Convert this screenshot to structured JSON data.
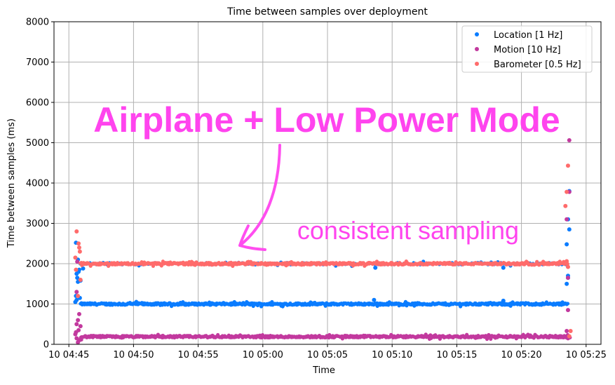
{
  "chart_data": {
    "type": "scatter",
    "title": "Time between samples over deployment",
    "xlabel": "Time",
    "ylabel": "Time between samples (ms)",
    "x_units": "minutes after 04:45",
    "xlim": [
      -1.15,
      41.15
    ],
    "ylim": [
      0,
      8000
    ],
    "yticks": [
      0,
      1000,
      2000,
      3000,
      4000,
      5000,
      6000,
      7000,
      8000
    ],
    "xticks": [
      0,
      5,
      10,
      15,
      20,
      25,
      30,
      35,
      40
    ],
    "xtick_labels": [
      "10 04:45",
      "10 04:50",
      "10 04:55",
      "10 05:00",
      "10 05:05",
      "10 05:10",
      "10 05:15",
      "10 05:20",
      "10 05:25"
    ],
    "grid": true,
    "legend_position": "top-right",
    "series": [
      {
        "name": "Location [1 Hz]",
        "color": "#0a7cff",
        "steady": {
          "start": 0.9,
          "end": 38.6,
          "value": 1000,
          "jitter": 25,
          "secondary_value": 2000
        },
        "outliers": [
          [
            0.55,
            2520
          ],
          [
            0.7,
            2100
          ],
          [
            0.6,
            1750
          ],
          [
            0.65,
            1650
          ],
          [
            0.8,
            1850
          ],
          [
            0.75,
            1800
          ],
          [
            0.9,
            1580
          ],
          [
            0.7,
            1550
          ],
          [
            0.55,
            1200
          ],
          [
            0.6,
            1100
          ],
          [
            0.85,
            1150
          ],
          [
            1.1,
            1880
          ],
          [
            0.5,
            1050
          ],
          [
            23.7,
            1900
          ],
          [
            23.6,
            1100
          ],
          [
            33.6,
            1900
          ],
          [
            33.6,
            1080
          ],
          [
            38.7,
            3800
          ],
          [
            38.6,
            3100
          ],
          [
            38.7,
            2850
          ],
          [
            38.5,
            2480
          ],
          [
            38.5,
            1500
          ],
          [
            38.6,
            1700
          ],
          [
            38.6,
            1650
          ]
        ]
      },
      {
        "name": "Motion [10 Hz]",
        "color": "#c2399e",
        "steady": {
          "start": 0.9,
          "end": 38.8,
          "value": 190,
          "jitter": 25
        },
        "outliers": [
          [
            0.6,
            1300
          ],
          [
            0.8,
            750
          ],
          [
            0.7,
            600
          ],
          [
            0.6,
            500
          ],
          [
            0.9,
            450
          ],
          [
            0.75,
            350
          ],
          [
            0.55,
            300
          ],
          [
            0.5,
            250
          ],
          [
            0.6,
            150
          ],
          [
            0.8,
            100
          ],
          [
            0.7,
            50
          ],
          [
            0.95,
            120
          ],
          [
            0.65,
            2050
          ],
          [
            38.7,
            5060
          ],
          [
            38.7,
            3780
          ],
          [
            38.5,
            3100
          ],
          [
            38.6,
            1650
          ],
          [
            38.6,
            850
          ],
          [
            38.5,
            330
          ],
          [
            38.6,
            150
          ]
        ]
      },
      {
        "name": "Barometer [0.5 Hz]",
        "color": "#ff6b6b",
        "steady": {
          "start": 0.9,
          "end": 38.6,
          "value": 2000,
          "jitter": 25
        },
        "outliers": [
          [
            0.6,
            2800
          ],
          [
            0.75,
            2500
          ],
          [
            0.8,
            2400
          ],
          [
            0.85,
            2300
          ],
          [
            0.5,
            2150
          ],
          [
            0.55,
            1850
          ],
          [
            0.9,
            1600
          ],
          [
            0.7,
            1200
          ],
          [
            38.6,
            4430
          ],
          [
            38.5,
            3780
          ],
          [
            38.4,
            3430
          ],
          [
            38.5,
            2060
          ],
          [
            38.6,
            1920
          ],
          [
            38.8,
            330
          ],
          [
            38.7,
            200
          ]
        ]
      }
    ],
    "annotations": {
      "headline": "Airplane + Low Power Mode",
      "note": "consistent sampling",
      "color": "#ff44ee"
    }
  }
}
